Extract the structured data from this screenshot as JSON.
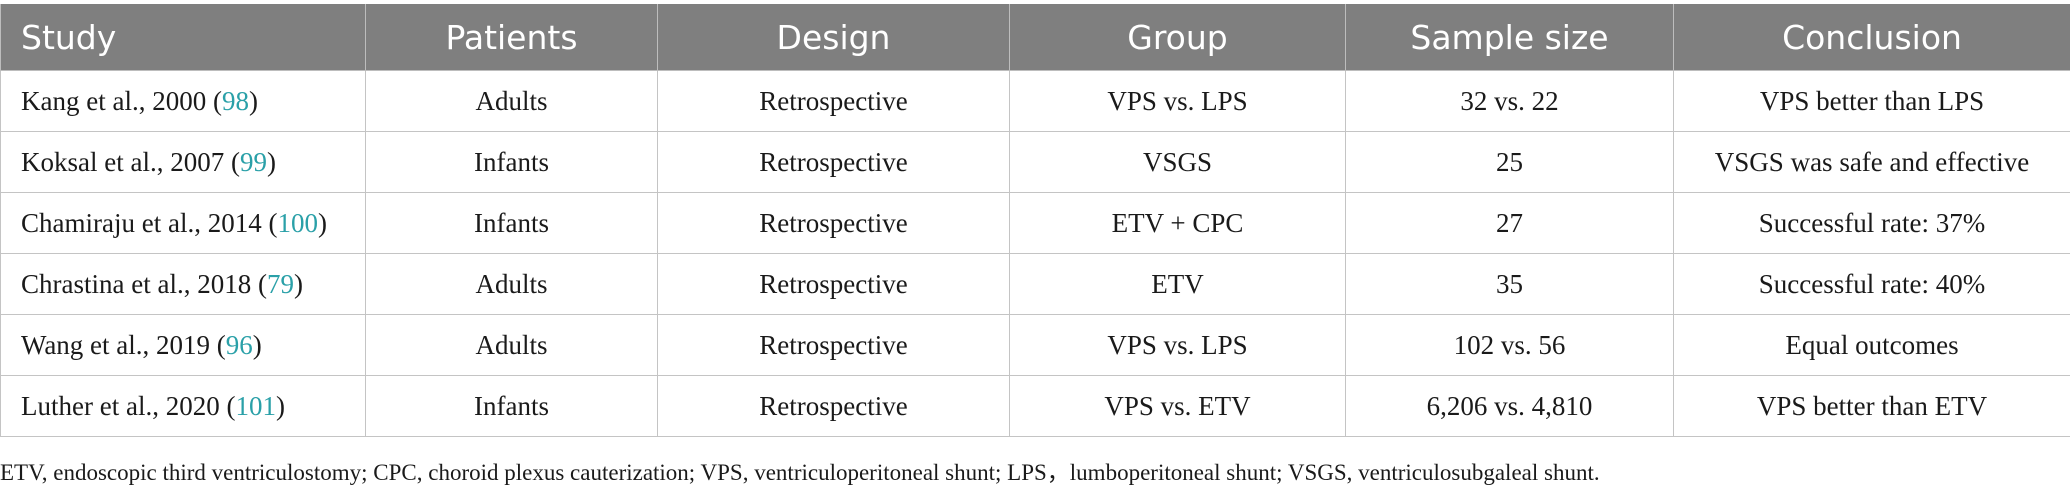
{
  "table": {
    "headers": [
      "Study",
      "Patients",
      "Design",
      "Group",
      "Sample size",
      "Conclusion"
    ],
    "rows": [
      {
        "study": "Kang et al., 2000",
        "ref": "98",
        "patients": "Adults",
        "design": "Retrospective",
        "group": "VPS vs. LPS",
        "sample": "32 vs. 22",
        "conclusion": "VPS better than LPS"
      },
      {
        "study": "Koksal et al., 2007",
        "ref": "99",
        "patients": "Infants",
        "design": "Retrospective",
        "group": "VSGS",
        "sample": "25",
        "conclusion": "VSGS was safe and effective"
      },
      {
        "study": "Chamiraju et al., 2014",
        "ref": "100",
        "patients": "Infants",
        "design": "Retrospective",
        "group": "ETV + CPC",
        "sample": "27",
        "conclusion": "Successful rate: 37%"
      },
      {
        "study": "Chrastina et al., 2018",
        "ref": "79",
        "patients": "Adults",
        "design": "Retrospective",
        "group": "ETV",
        "sample": "35",
        "conclusion": "Successful rate: 40%"
      },
      {
        "study": "Wang et al., 2019",
        "ref": "96",
        "patients": "Adults",
        "design": "Retrospective",
        "group": "VPS vs. LPS",
        "sample": "102 vs. 56",
        "conclusion": "Equal outcomes"
      },
      {
        "study": "Luther et al., 2020",
        "ref": "101",
        "patients": "Infants",
        "design": "Retrospective",
        "group": "VPS vs. ETV",
        "sample": "6,206 vs. 4,810",
        "conclusion": "VPS better than ETV"
      }
    ]
  },
  "footnote": "ETV, endoscopic third ventriculostomy; CPC, choroid plexus cauterization; VPS, ventriculoperitoneal shunt; LPS，lumboperitoneal shunt; VSGS, ventriculosubgaleal shunt.",
  "colors": {
    "header_bg": "#7f7f7f",
    "header_text": "#ffffff",
    "ref_link": "#2aa0a8",
    "border": "#c4c4c4"
  }
}
